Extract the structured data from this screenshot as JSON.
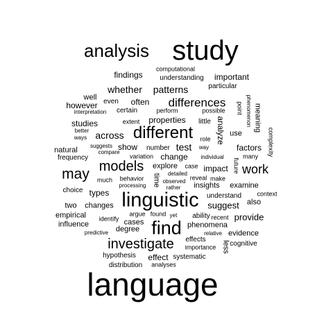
{
  "word_cloud": {
    "text_color": "#000000",
    "background": "#ffffff",
    "words": {
      "language": "language",
      "study": "study",
      "linguistic": "linguistic",
      "analysis": "analysis",
      "find": "find",
      "different": "different",
      "investigate": "investigate",
      "models": "models",
      "may": "may",
      "differences": "differences",
      "work": "work",
      "patterns": "patterns",
      "whether": "whether",
      "across": "across",
      "test": "test",
      "suggest": "suggest",
      "provide": "provide",
      "impact": "impact",
      "properties": "properties",
      "often": "often",
      "studies": "studies",
      "factors": "factors",
      "effect": "effect",
      "findings": "findings",
      "important": "important",
      "however": "however",
      "types": "types",
      "change": "change",
      "show": "show",
      "explore": "explore",
      "changes": "changes",
      "cases": "cases",
      "also": "also",
      "understanding": "understanding",
      "computational": "computational",
      "particular": "particular",
      "well": "well",
      "even": "even",
      "certain": "certain",
      "extent": "extent",
      "perform": "perform",
      "possible": "possible",
      "little": "little",
      "interpretation": "interpretation",
      "better": "better",
      "ways": "ways",
      "suggests": "suggests",
      "compare": "compare",
      "number": "number",
      "role": "role",
      "way": "way",
      "use": "use",
      "many": "many",
      "natural": "natural",
      "frequency": "frequency",
      "variation": "variation",
      "individual": "individual",
      "case": "case",
      "detailed": "detailed",
      "reveal": "reveal",
      "make": "make",
      "behavior": "behavior",
      "observed": "observed",
      "processing": "processing",
      "rather": "rather",
      "insights": "insights",
      "examine": "examine",
      "much": "much",
      "choice": "choice",
      "context": "context",
      "understand": "understand",
      "two": "two",
      "empirical": "empirical",
      "influence": "influence",
      "identify": "identify",
      "argue": "argue",
      "found": "found",
      "yet": "yet",
      "ability": "ability",
      "recent": "recent",
      "predictive": "predictive",
      "degree": "degree",
      "phenomena": "phenomena",
      "relative": "relative",
      "evidence": "evidence",
      "effects": "effects",
      "cognitive": "cognitive",
      "importance": "importance",
      "hypothesis": "hypothesis",
      "systematic": "systematic",
      "distribution": "distribution",
      "analyses": "analyses",
      "point": "point",
      "meaning": "meaning",
      "phenomenon": "phenomenon",
      "complexity": "complexity",
      "analyze": "analyze",
      "time": "time",
      "future": "future",
      "less": "less"
    }
  }
}
